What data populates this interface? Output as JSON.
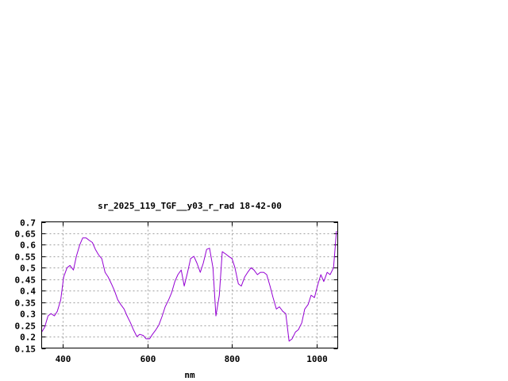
{
  "chart_data": {
    "type": "line",
    "title": "sr_2025_119_TGF__y03_r_rad 18-42-00",
    "xlabel": "nm",
    "ylabel": "",
    "xlim": [
      350,
      1050
    ],
    "ylim": [
      0.15,
      0.7
    ],
    "grid": true,
    "legend": "none",
    "x_ticks": [
      {
        "value": 400,
        "label": "400"
      },
      {
        "value": 600,
        "label": "600"
      },
      {
        "value": 800,
        "label": "800"
      },
      {
        "value": 1000,
        "label": "1000"
      }
    ],
    "y_ticks": [
      {
        "value": 0.15,
        "label": "0.15"
      },
      {
        "value": 0.2,
        "label": "0.2"
      },
      {
        "value": 0.25,
        "label": "0.25"
      },
      {
        "value": 0.3,
        "label": "0.3"
      },
      {
        "value": 0.35,
        "label": "0.35"
      },
      {
        "value": 0.4,
        "label": "0.4"
      },
      {
        "value": 0.45,
        "label": "0.45"
      },
      {
        "value": 0.5,
        "label": "0.5"
      },
      {
        "value": 0.55,
        "label": "0.55"
      },
      {
        "value": 0.6,
        "label": "0.6"
      },
      {
        "value": 0.65,
        "label": "0.65"
      },
      {
        "value": 0.7,
        "label": "0.7"
      }
    ],
    "series": [
      {
        "color": "#9400d3",
        "x": [
          350,
          357,
          365,
          372,
          380,
          387,
          395,
          402,
          410,
          417,
          425,
          432,
          440,
          447,
          455,
          462,
          470,
          477,
          485,
          492,
          500,
          507,
          515,
          522,
          530,
          537,
          545,
          552,
          560,
          567,
          575,
          582,
          590,
          597,
          605,
          612,
          620,
          627,
          635,
          642,
          650,
          657,
          665,
          672,
          680,
          687,
          695,
          702,
          710,
          717,
          725,
          732,
          740,
          747,
          755,
          762,
          770,
          777,
          785,
          792,
          800,
          807,
          815,
          822,
          830,
          837,
          845,
          852,
          860,
          867,
          875,
          882,
          890,
          897,
          905,
          912,
          920,
          927,
          935,
          942,
          950,
          957,
          965,
          972,
          980,
          987,
          995,
          1002,
          1010,
          1017,
          1025,
          1032,
          1040,
          1047
        ],
        "y": [
          0.22,
          0.24,
          0.29,
          0.3,
          0.29,
          0.31,
          0.36,
          0.46,
          0.5,
          0.51,
          0.49,
          0.55,
          0.6,
          0.63,
          0.63,
          0.62,
          0.61,
          0.58,
          0.555,
          0.54,
          0.48,
          0.46,
          0.43,
          0.4,
          0.36,
          0.34,
          0.32,
          0.29,
          0.26,
          0.23,
          0.2,
          0.21,
          0.205,
          0.19,
          0.19,
          0.21,
          0.23,
          0.25,
          0.29,
          0.33,
          0.36,
          0.39,
          0.44,
          0.47,
          0.49,
          0.42,
          0.48,
          0.54,
          0.55,
          0.52,
          0.48,
          0.52,
          0.58,
          0.585,
          0.5,
          0.29,
          0.38,
          0.57,
          0.56,
          0.55,
          0.54,
          0.5,
          0.43,
          0.42,
          0.46,
          0.48,
          0.5,
          0.49,
          0.47,
          0.48,
          0.48,
          0.47,
          0.42,
          0.37,
          0.32,
          0.33,
          0.31,
          0.3,
          0.18,
          0.19,
          0.22,
          0.23,
          0.26,
          0.32,
          0.34,
          0.38,
          0.37,
          0.42,
          0.47,
          0.44,
          0.48,
          0.47,
          0.5,
          0.66
        ]
      }
    ]
  }
}
